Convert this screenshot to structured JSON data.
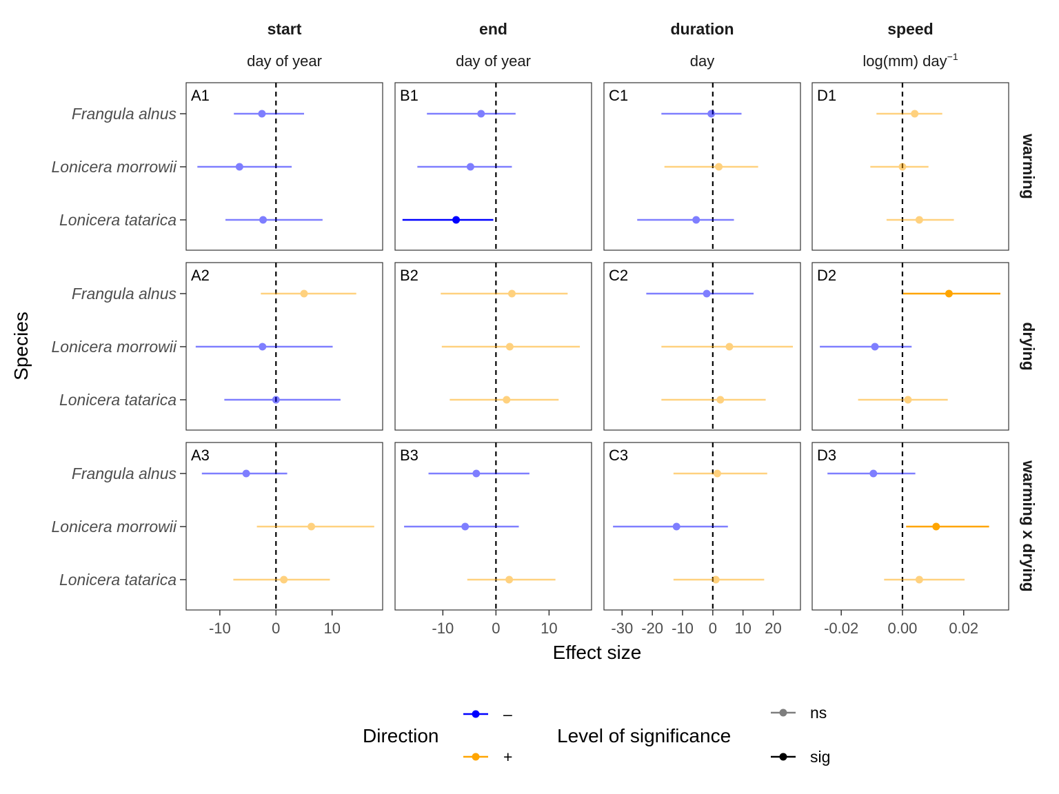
{
  "chart_data": {
    "type": "scatter",
    "title": "",
    "xlabel": "Effect size",
    "ylabel": "Species",
    "species": [
      "Frangula alnus",
      "Lonicera morrowii",
      "Lonicera tatarica"
    ],
    "columns": [
      {
        "key": "start",
        "title": "start",
        "subtitle": "day of year",
        "xlim": [
          -16,
          19
        ],
        "ticks": [
          -10,
          0,
          10
        ],
        "tick_labels": [
          "-10",
          "0",
          "10"
        ]
      },
      {
        "key": "end",
        "title": "end",
        "subtitle": "day of year",
        "xlim": [
          -19,
          18
        ],
        "ticks": [
          -10,
          0,
          10
        ],
        "tick_labels": [
          "-10",
          "0",
          "10"
        ]
      },
      {
        "key": "duration",
        "title": "duration",
        "subtitle": "day",
        "xlim": [
          -36,
          29
        ],
        "ticks": [
          -30,
          -20,
          -10,
          0,
          10,
          20
        ],
        "tick_labels": [
          "-30",
          "-20",
          "-10",
          "0",
          "10",
          "20"
        ]
      },
      {
        "key": "speed",
        "title": "speed",
        "subtitle": "log(mm) day",
        "subtitle_sup": "−1",
        "xlim": [
          -0.0295,
          0.0347
        ],
        "ticks": [
          -0.02,
          0.0,
          0.02
        ],
        "tick_labels": [
          "-0.02",
          "0.00",
          "0.02"
        ]
      }
    ],
    "rows": [
      "warming",
      "drying",
      "warming x drying"
    ],
    "panels": [
      {
        "label": "A1",
        "col": 0,
        "row": 0,
        "points": [
          {
            "species": "Frangula alnus",
            "est": -2.5,
            "lo": -7.5,
            "hi": 5.0,
            "dir": "-",
            "sig": "ns"
          },
          {
            "species": "Lonicera morrowii",
            "est": -6.5,
            "lo": -14.0,
            "hi": 2.8,
            "dir": "-",
            "sig": "ns"
          },
          {
            "species": "Lonicera tatarica",
            "est": -2.3,
            "lo": -9.0,
            "hi": 8.3,
            "dir": "-",
            "sig": "ns"
          }
        ]
      },
      {
        "label": "B1",
        "col": 1,
        "row": 0,
        "points": [
          {
            "species": "Frangula alnus",
            "est": -2.8,
            "lo": -13.0,
            "hi": 3.7,
            "dir": "-",
            "sig": "ns"
          },
          {
            "species": "Lonicera morrowii",
            "est": -4.8,
            "lo": -14.8,
            "hi": 3.0,
            "dir": "-",
            "sig": "ns"
          },
          {
            "species": "Lonicera tatarica",
            "est": -7.5,
            "lo": -17.6,
            "hi": -0.5,
            "dir": "-",
            "sig": "sig"
          }
        ]
      },
      {
        "label": "C1",
        "col": 2,
        "row": 0,
        "points": [
          {
            "species": "Frangula alnus",
            "est": -0.5,
            "lo": -17.0,
            "hi": 9.5,
            "dir": "-",
            "sig": "ns"
          },
          {
            "species": "Lonicera morrowii",
            "est": 2.0,
            "lo": -16.0,
            "hi": 15.0,
            "dir": "+",
            "sig": "ns"
          },
          {
            "species": "Lonicera tatarica",
            "est": -5.5,
            "lo": -25.0,
            "hi": 7.0,
            "dir": "-",
            "sig": "ns"
          }
        ]
      },
      {
        "label": "D1",
        "col": 3,
        "row": 0,
        "points": [
          {
            "species": "Frangula alnus",
            "est": 0.004,
            "lo": -0.0085,
            "hi": 0.013,
            "dir": "+",
            "sig": "ns"
          },
          {
            "species": "Lonicera morrowii",
            "est": 0.0,
            "lo": -0.0105,
            "hi": 0.0085,
            "dir": "+",
            "sig": "ns"
          },
          {
            "species": "Lonicera tatarica",
            "est": 0.0055,
            "lo": -0.0052,
            "hi": 0.0168,
            "dir": "+",
            "sig": "ns"
          }
        ]
      },
      {
        "label": "A2",
        "col": 0,
        "row": 1,
        "points": [
          {
            "species": "Frangula alnus",
            "est": 5.0,
            "lo": -2.7,
            "hi": 14.3,
            "dir": "+",
            "sig": "ns"
          },
          {
            "species": "Lonicera morrowii",
            "est": -2.4,
            "lo": -14.3,
            "hi": 10.1,
            "dir": "-",
            "sig": "ns"
          },
          {
            "species": "Lonicera tatarica",
            "est": 0.0,
            "lo": -9.2,
            "hi": 11.5,
            "dir": "-",
            "sig": "ns"
          }
        ]
      },
      {
        "label": "B2",
        "col": 1,
        "row": 1,
        "points": [
          {
            "species": "Frangula alnus",
            "est": 3.0,
            "lo": -10.4,
            "hi": 13.5,
            "dir": "+",
            "sig": "ns"
          },
          {
            "species": "Lonicera morrowii",
            "est": 2.6,
            "lo": -10.2,
            "hi": 15.8,
            "dir": "+",
            "sig": "ns"
          },
          {
            "species": "Lonicera tatarica",
            "est": 2.0,
            "lo": -8.7,
            "hi": 11.8,
            "dir": "+",
            "sig": "ns"
          }
        ]
      },
      {
        "label": "C2",
        "col": 2,
        "row": 1,
        "points": [
          {
            "species": "Frangula alnus",
            "est": -2.0,
            "lo": -22.0,
            "hi": 13.5,
            "dir": "-",
            "sig": "ns"
          },
          {
            "species": "Lonicera morrowii",
            "est": 5.5,
            "lo": -17.0,
            "hi": 26.5,
            "dir": "+",
            "sig": "ns"
          },
          {
            "species": "Lonicera tatarica",
            "est": 2.5,
            "lo": -17.0,
            "hi": 17.5,
            "dir": "+",
            "sig": "ns"
          }
        ]
      },
      {
        "label": "D2",
        "col": 3,
        "row": 1,
        "points": [
          {
            "species": "Frangula alnus",
            "est": 0.0152,
            "lo": 0.0002,
            "hi": 0.032,
            "dir": "+",
            "sig": "sig"
          },
          {
            "species": "Lonicera morrowii",
            "est": -0.009,
            "lo": -0.027,
            "hi": 0.003,
            "dir": "-",
            "sig": "ns"
          },
          {
            "species": "Lonicera tatarica",
            "est": 0.0018,
            "lo": -0.0145,
            "hi": 0.0148,
            "dir": "+",
            "sig": "ns"
          }
        ]
      },
      {
        "label": "A3",
        "col": 0,
        "row": 2,
        "points": [
          {
            "species": "Frangula alnus",
            "est": -5.3,
            "lo": -13.2,
            "hi": 2.0,
            "dir": "-",
            "sig": "ns"
          },
          {
            "species": "Lonicera morrowii",
            "est": 6.3,
            "lo": -3.4,
            "hi": 17.5,
            "dir": "+",
            "sig": "ns"
          },
          {
            "species": "Lonicera tatarica",
            "est": 1.4,
            "lo": -7.6,
            "hi": 9.6,
            "dir": "+",
            "sig": "ns"
          }
        ]
      },
      {
        "label": "B3",
        "col": 1,
        "row": 2,
        "points": [
          {
            "species": "Frangula alnus",
            "est": -3.7,
            "lo": -12.7,
            "hi": 6.3,
            "dir": "-",
            "sig": "ns"
          },
          {
            "species": "Lonicera morrowii",
            "est": -5.8,
            "lo": -17.3,
            "hi": 4.3,
            "dir": "-",
            "sig": "ns"
          },
          {
            "species": "Lonicera tatarica",
            "est": 2.5,
            "lo": -5.4,
            "hi": 11.2,
            "dir": "+",
            "sig": "ns"
          }
        ]
      },
      {
        "label": "C3",
        "col": 2,
        "row": 2,
        "points": [
          {
            "species": "Frangula alnus",
            "est": 1.5,
            "lo": -13.0,
            "hi": 18.0,
            "dir": "+",
            "sig": "ns"
          },
          {
            "species": "Lonicera morrowii",
            "est": -12.0,
            "lo": -33.0,
            "hi": 5.0,
            "dir": "-",
            "sig": "ns"
          },
          {
            "species": "Lonicera tatarica",
            "est": 1.0,
            "lo": -13.0,
            "hi": 17.0,
            "dir": "+",
            "sig": "ns"
          }
        ]
      },
      {
        "label": "D3",
        "col": 3,
        "row": 2,
        "points": [
          {
            "species": "Frangula alnus",
            "est": -0.0095,
            "lo": -0.0245,
            "hi": 0.0042,
            "dir": "-",
            "sig": "ns"
          },
          {
            "species": "Lonicera morrowii",
            "est": 0.011,
            "lo": 0.0012,
            "hi": 0.0283,
            "dir": "+",
            "sig": "sig"
          },
          {
            "species": "Lonicera tatarica",
            "est": 0.0055,
            "lo": -0.006,
            "hi": 0.0203,
            "dir": "+",
            "sig": "ns"
          }
        ]
      }
    ],
    "legend": {
      "placement": "bottom",
      "direction_title": "Direction",
      "direction_items": [
        {
          "label": "–",
          "color": "#0000ff"
        },
        {
          "label": "+",
          "color": "#ffa500"
        }
      ],
      "significance_title": "Level of significance",
      "significance_items": [
        {
          "label": "ns",
          "alpha": 0.5
        },
        {
          "label": "sig",
          "alpha": 1.0
        }
      ]
    },
    "colors": {
      "negative": "#0000ff",
      "positive": "#ffa500",
      "panel_border": "#333333",
      "tick_text": "#4d4d4d",
      "reference_line": "#000000"
    },
    "grid": false
  }
}
